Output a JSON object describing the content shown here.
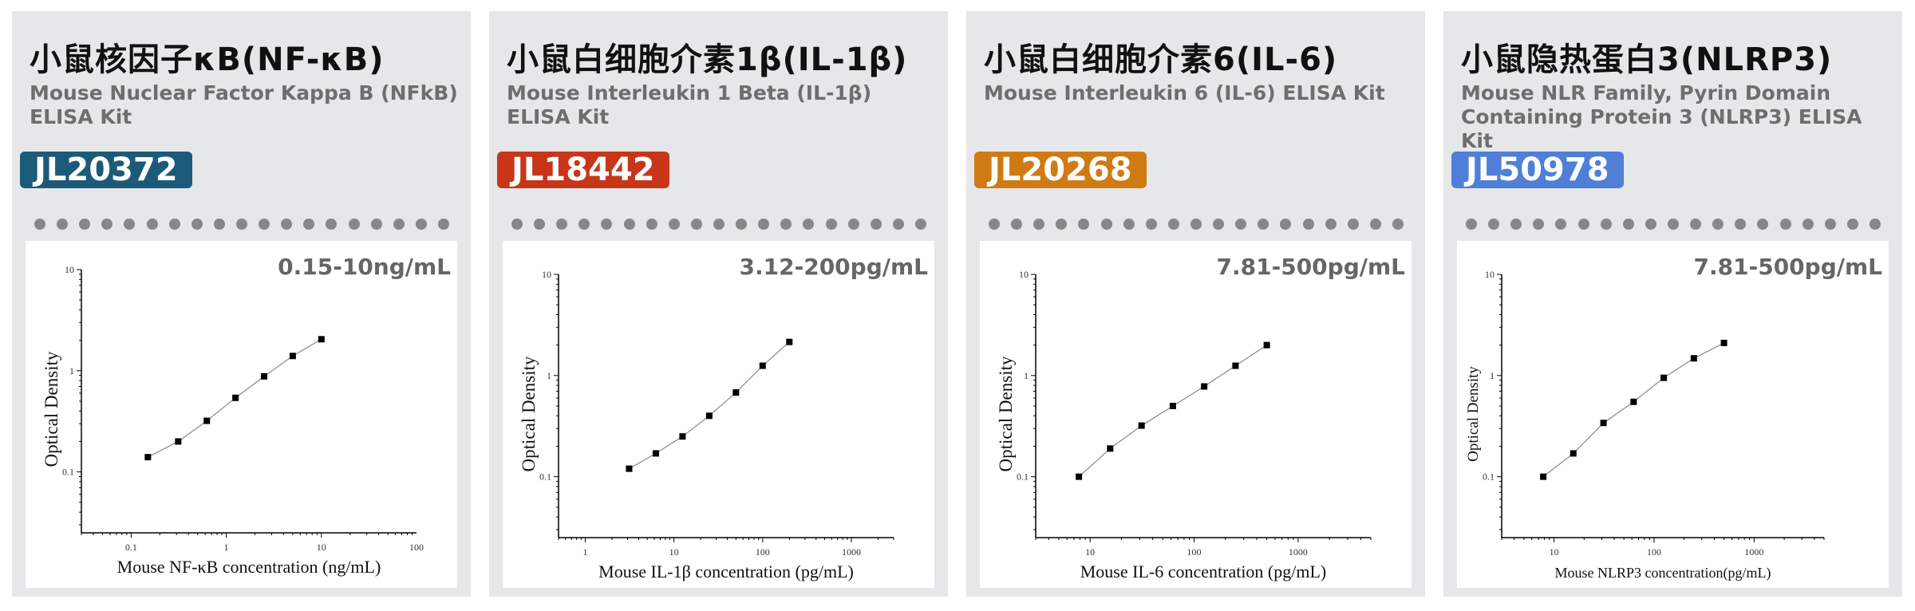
{
  "panels": [
    {
      "title": "小鼠核因子κB(NF-κB)",
      "subtitle": "Mouse Nuclear Factor Kappa B (NFkB) ELISA Kit",
      "code": "JL20372",
      "color": "#1b5a78",
      "range": "0.15-10ng/mL"
    },
    {
      "title": "小鼠白细胞介素1β(IL-1β)",
      "subtitle": "Mouse Interleukin 1 Beta (IL-1β) ELISA Kit",
      "code": "JL18442",
      "color": "#c8361a",
      "range": "3.12-200pg/mL"
    },
    {
      "title": "小鼠白细胞介素6(IL-6)",
      "subtitle": "Mouse Interleukin 6 (IL-6) ELISA Kit",
      "code": "JL20268",
      "color": "#d07a14",
      "range": "7.81-500pg/mL"
    },
    {
      "title": "小鼠隐热蛋白3(NLRP3)",
      "subtitle": "Mouse NLR Family, Pyrin Domain Containing Protein 3 (NLRP3) ELISA Kit",
      "code": "JL50978",
      "color": "#4f7fd6",
      "range": "7.81-500pg/mL"
    }
  ],
  "chart_data": [
    {
      "type": "scatter",
      "xscale": "log",
      "yscale": "log",
      "xlabel": "Mouse NF-κB concentration (ng/mL)",
      "ylabel": "Optical Density",
      "xlim": [
        0.03,
        100
      ],
      "ylim": [
        0.025,
        10
      ],
      "xticks": [
        "0.1",
        "1",
        "10",
        "100"
      ],
      "yticks": [
        "0.1",
        "1",
        "10"
      ],
      "x": [
        0.15,
        0.3125,
        0.625,
        1.25,
        2.5,
        5,
        10
      ],
      "y": [
        0.14,
        0.2,
        0.32,
        0.54,
        0.88,
        1.4,
        2.05
      ]
    },
    {
      "type": "scatter",
      "xscale": "log",
      "yscale": "log",
      "xlabel": "Mouse IL-1β concentration (pg/mL)",
      "ylabel": "Optical Density",
      "xlim": [
        0.5,
        3000
      ],
      "ylim": [
        0.025,
        10
      ],
      "xticks": [
        "1",
        "10",
        "100",
        "1000"
      ],
      "yticks": [
        "0.1",
        "1",
        "10"
      ],
      "x": [
        3.125,
        6.25,
        12.5,
        25,
        50,
        100,
        200
      ],
      "y": [
        0.12,
        0.17,
        0.25,
        0.4,
        0.68,
        1.25,
        2.15
      ]
    },
    {
      "type": "scatter",
      "xscale": "log",
      "yscale": "log",
      "xlabel": "Mouse IL-6 concentration (pg/mL)",
      "ylabel": "Optical Density",
      "xlim": [
        3,
        5000
      ],
      "ylim": [
        0.025,
        10
      ],
      "xticks": [
        "10",
        "100",
        "1000"
      ],
      "yticks": [
        "0.1",
        "1",
        "10"
      ],
      "x": [
        7.81,
        15.6,
        31.25,
        62.5,
        125,
        250,
        500
      ],
      "y": [
        0.1,
        0.19,
        0.32,
        0.5,
        0.78,
        1.25,
        2.0
      ]
    },
    {
      "type": "scatter",
      "xscale": "log",
      "yscale": "log",
      "xlabel": "Mouse NLRP3 concentration(pg/mL)",
      "ylabel": "Optical Density",
      "xlim": [
        3,
        5000
      ],
      "ylim": [
        0.025,
        10
      ],
      "xticks": [
        "10",
        "100",
        "1000"
      ],
      "yticks": [
        "0.1",
        "1",
        "10"
      ],
      "x": [
        7.81,
        15.6,
        31.25,
        62.5,
        125,
        250,
        500
      ],
      "y": [
        0.1,
        0.17,
        0.34,
        0.55,
        0.95,
        1.48,
        2.1
      ]
    }
  ]
}
